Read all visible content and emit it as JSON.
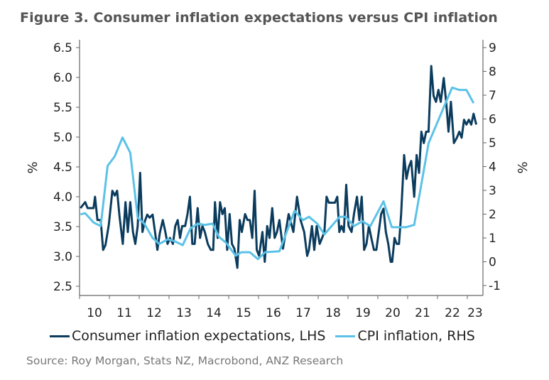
{
  "chart_data": {
    "type": "line",
    "title": "Figure 3. Consumer inflation expectations versus CPI inflation",
    "source": "Source: Roy Morgan, Stats NZ, Macrobond, ANZ Research",
    "xlabel": "",
    "ylabel_left": "%",
    "ylabel_right": "%",
    "xlim": [
      2010,
      2023.52
    ],
    "ylim_left": [
      2.4,
      6.6
    ],
    "ylim_right": [
      -1.3,
      9.3
    ],
    "yticks_left": [
      "2.5",
      "3.0",
      "3.5",
      "4.0",
      "4.5",
      "5.0",
      "5.5",
      "6.0",
      "6.5"
    ],
    "yticks_right": [
      "-1",
      "0",
      "1",
      "2",
      "3",
      "4",
      "5",
      "6",
      "7",
      "8",
      "9"
    ],
    "xtick_labels": [
      "10",
      "11",
      "12",
      "13",
      "14",
      "15",
      "16",
      "17",
      "18",
      "19",
      "20",
      "21",
      "22",
      "23"
    ],
    "grid": false,
    "legend_position": "bottom",
    "colors": {
      "expectations": "#0b3c5d",
      "cpi": "#5bc2e7",
      "axis": "#666666",
      "title": "#555555"
    },
    "series": [
      {
        "name": "Consumer inflation expectations, LHS",
        "axis": "left",
        "x": [
          2010.03,
          2010.19,
          2010.27,
          2010.47,
          2010.52,
          2010.6,
          2010.71,
          2010.79,
          2010.87,
          2010.98,
          2011.1,
          2011.18,
          2011.26,
          2011.34,
          2011.45,
          2011.54,
          2011.62,
          2011.7,
          2011.79,
          2011.87,
          2011.95,
          2012.03,
          2012.11,
          2012.19,
          2012.27,
          2012.35,
          2012.45,
          2012.53,
          2012.61,
          2012.69,
          2012.79,
          2012.87,
          2012.95,
          2013.03,
          2013.13,
          2013.21,
          2013.29,
          2013.37,
          2013.44,
          2013.54,
          2013.62,
          2013.7,
          2013.78,
          2013.86,
          2013.96,
          2014.04,
          2014.12,
          2014.2,
          2014.3,
          2014.4,
          2014.48,
          2014.54,
          2014.63,
          2014.71,
          2014.79,
          2014.87,
          2014.95,
          2015.03,
          2015.11,
          2015.19,
          2015.29,
          2015.37,
          2015.44,
          2015.55,
          2015.63,
          2015.71,
          2015.79,
          2015.87,
          2015.94,
          2016.02,
          2016.13,
          2016.21,
          2016.29,
          2016.37,
          2016.46,
          2016.54,
          2016.62,
          2016.7,
          2016.82,
          2017.01,
          2017.17,
          2017.29,
          2017.41,
          2017.53,
          2017.63,
          2017.69,
          2017.79,
          2017.87,
          2017.95,
          2018.05,
          2018.13,
          2018.21,
          2018.28,
          2018.36,
          2018.56,
          2018.64,
          2018.71,
          2018.78,
          2018.86,
          2018.94,
          2019.02,
          2019.12,
          2019.2,
          2019.3,
          2019.38,
          2019.46,
          2019.54,
          2019.62,
          2019.7,
          2019.78,
          2019.87,
          2019.95,
          2020.03,
          2020.11,
          2020.19,
          2020.27,
          2020.35,
          2020.43,
          2020.48,
          2020.56,
          2020.63,
          2020.71,
          2020.78,
          2020.88,
          2020.96,
          2021.04,
          2021.12,
          2021.22,
          2021.3,
          2021.38,
          2021.46,
          2021.54,
          2021.62,
          2021.7,
          2021.79,
          2021.87,
          2021.95,
          2022.03,
          2022.11,
          2022.21,
          2022.29,
          2022.37,
          2022.45,
          2022.55,
          2022.65,
          2022.73,
          2022.81,
          2022.89,
          2022.97,
          2023.05,
          2023.13,
          2023.21,
          2023.3
        ],
        "values": [
          3.81,
          3.91,
          3.81,
          3.81,
          4.0,
          3.61,
          3.61,
          3.11,
          3.19,
          3.53,
          4.1,
          4.02,
          4.1,
          3.67,
          3.21,
          3.91,
          3.41,
          3.91,
          3.41,
          3.21,
          3.51,
          4.4,
          3.41,
          3.59,
          3.7,
          3.65,
          3.7,
          3.41,
          3.11,
          3.39,
          3.61,
          3.43,
          3.21,
          3.31,
          3.21,
          3.51,
          3.61,
          3.31,
          3.51,
          3.51,
          3.71,
          4.0,
          3.21,
          3.21,
          3.81,
          3.31,
          3.51,
          3.41,
          3.21,
          3.11,
          3.11,
          3.91,
          3.31,
          3.91,
          3.71,
          3.81,
          3.11,
          3.71,
          3.21,
          3.13,
          2.81,
          3.61,
          3.41,
          3.71,
          3.61,
          3.61,
          3.31,
          4.1,
          3.11,
          3.01,
          3.41,
          2.91,
          3.51,
          3.31,
          3.81,
          3.31,
          3.41,
          3.61,
          3.13,
          3.71,
          3.41,
          4.0,
          3.61,
          3.41,
          3.01,
          3.11,
          3.51,
          3.11,
          3.51,
          3.21,
          3.31,
          3.41,
          4.0,
          3.9,
          3.9,
          4.0,
          3.41,
          3.51,
          3.41,
          4.2,
          3.51,
          3.41,
          3.71,
          4.0,
          3.61,
          4.0,
          3.11,
          3.21,
          3.51,
          3.31,
          3.11,
          3.11,
          3.41,
          3.71,
          3.8,
          3.41,
          3.21,
          2.91,
          2.91,
          3.31,
          3.21,
          3.21,
          3.71,
          4.7,
          4.3,
          4.5,
          4.6,
          4.0,
          4.7,
          4.4,
          5.09,
          4.9,
          5.09,
          5.09,
          6.19,
          5.69,
          5.59,
          5.79,
          5.59,
          5.99,
          5.59,
          5.09,
          5.59,
          4.9,
          4.99,
          5.09,
          4.99,
          5.29,
          5.21,
          5.29,
          5.21,
          5.39,
          5.21
        ]
      },
      {
        "name": "CPI inflation, RHS",
        "axis": "right",
        "x": [
          2010.03,
          2010.19,
          2010.47,
          2010.71,
          2010.94,
          2011.18,
          2011.44,
          2011.7,
          2011.95,
          2012.17,
          2012.45,
          2012.67,
          2012.97,
          2013.21,
          2013.46,
          2013.72,
          2013.96,
          2014.2,
          2014.46,
          2014.67,
          2014.91,
          2015.23,
          2015.43,
          2015.71,
          2015.98,
          2016.22,
          2016.7,
          2017.21,
          2017.49,
          2017.69,
          2017.97,
          2018.21,
          2018.72,
          2018.92,
          2019.2,
          2019.48,
          2019.75,
          2020.19,
          2020.47,
          2020.94,
          2021.22,
          2021.7,
          2022.49,
          2022.73,
          2022.97,
          2023.21
        ],
        "values": [
          1.99,
          2.04,
          1.65,
          1.5,
          4.03,
          4.43,
          5.22,
          4.58,
          1.85,
          1.6,
          1.0,
          0.75,
          0.95,
          0.85,
          0.7,
          1.4,
          1.6,
          1.55,
          1.6,
          1.05,
          0.8,
          0.26,
          0.4,
          0.4,
          0.11,
          0.4,
          0.44,
          2.14,
          1.75,
          1.89,
          1.6,
          1.15,
          1.89,
          1.89,
          1.5,
          1.7,
          1.5,
          2.54,
          1.45,
          1.45,
          1.55,
          4.98,
          7.32,
          7.22,
          7.22,
          6.67
        ]
      }
    ]
  }
}
